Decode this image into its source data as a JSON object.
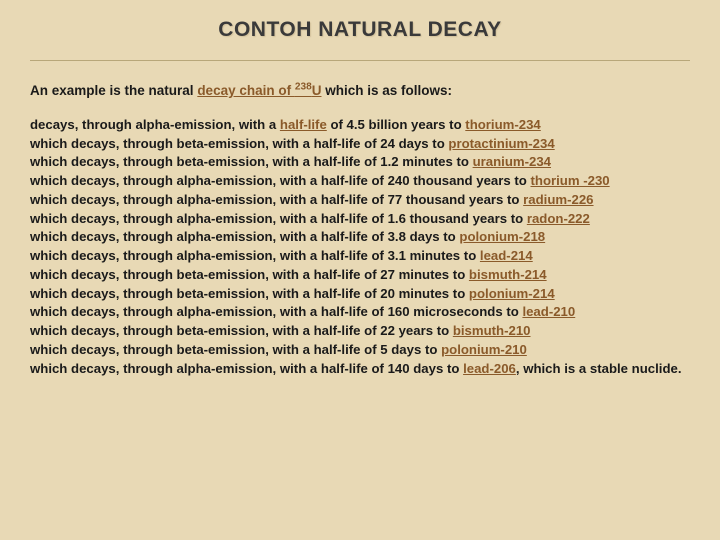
{
  "colors": {
    "background": "#e8d9b5",
    "title_text": "#3a3a3a",
    "body_text": "#1a1a1a",
    "link": "#8a5a2a",
    "divider": "#b8a77a"
  },
  "typography": {
    "title_fontsize": 21,
    "body_fontsize": 13.2,
    "font_family": "Arial",
    "bold": true
  },
  "title": "CONTOH NATURAL DECAY",
  "intro_prefix": "An example is the natural ",
  "intro_link": "decay chain of ",
  "intro_isotope_mass": "238",
  "intro_isotope_sym": "U",
  "intro_suffix": " which is as follows:",
  "first_line_prefix": "decays, through alpha-emission, with a ",
  "first_line_link1": "half-life",
  "first_line_mid": " of 4.5 billion years to ",
  "first_line_link2": "thorium-234",
  "chain": [
    {
      "emission": "beta",
      "halflife": "24 days",
      "to": "protactinium-234"
    },
    {
      "emission": "beta",
      "halflife": "1.2 minutes",
      "to": "uranium-234"
    },
    {
      "emission": "alpha",
      "halflife": "240 thousand years",
      "to": "thorium-230",
      "to_display": "thorium -230",
      "break_before_to_suffix": true
    },
    {
      "emission": "alpha",
      "halflife": "77 thousand years",
      "to": "radium-226"
    },
    {
      "emission": "alpha",
      "halflife": "1.6 thousand years",
      "to": "radon-222"
    },
    {
      "emission": "alpha",
      "halflife": "3.8 days",
      "to": "polonium-218"
    },
    {
      "emission": "alpha",
      "halflife": "3.1 minutes",
      "to": "lead-214"
    },
    {
      "emission": "beta",
      "halflife": "27 minutes",
      "to": "bismuth-214"
    },
    {
      "emission": "beta",
      "halflife": "20 minutes",
      "to": "polonium-214"
    },
    {
      "emission": "alpha",
      "halflife": "160 microseconds",
      "to": "lead-210"
    },
    {
      "emission": "beta",
      "halflife": "22 years",
      "to": "bismuth-210"
    },
    {
      "emission": "beta",
      "halflife": "5 days",
      "to": "polonium-210"
    },
    {
      "emission": "alpha",
      "halflife": "140 days",
      "to": "lead-206",
      "final": true
    }
  ],
  "line_template_prefix": "which decays, through ",
  "line_template_mid1": "-emission, with a half-life of ",
  "line_template_mid2": " to ",
  "final_suffix": ", which is a stable nuclide."
}
